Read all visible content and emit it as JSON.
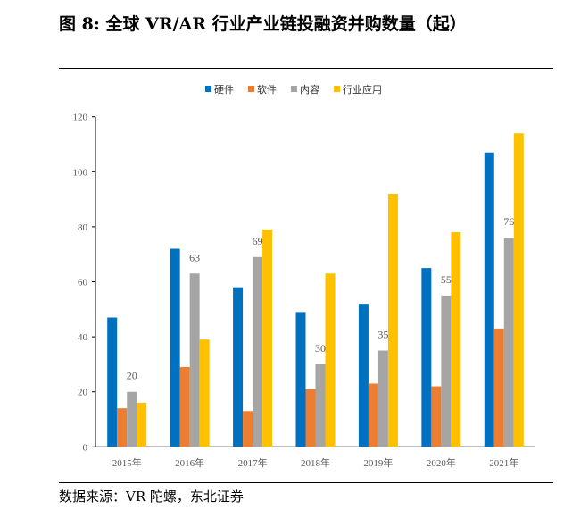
{
  "title": "图  8: 全球 VR/AR 行业产业链投融资并购数量（起）",
  "source": "数据来源：VR 陀螺，东北证券",
  "chart_data": {
    "type": "bar",
    "title": "图  8: 全球 VR/AR 行业产业链投融资并购数量（起）",
    "categories": [
      "2015年",
      "2016年",
      "2017年",
      "2018年",
      "2019年",
      "2020年",
      "2021年"
    ],
    "series": [
      {
        "name": "硬件",
        "color": "#0070C0",
        "values": [
          47,
          72,
          58,
          49,
          52,
          65,
          107
        ]
      },
      {
        "name": "软件",
        "color": "#ED7D31",
        "values": [
          14,
          29,
          13,
          21,
          23,
          22,
          43
        ]
      },
      {
        "name": "内容",
        "color": "#A5A5A5",
        "values": [
          20,
          63,
          69,
          30,
          35,
          55,
          76
        ],
        "data_labels": true
      },
      {
        "name": "行业应用",
        "color": "#FFC000",
        "values": [
          16,
          39,
          79,
          63,
          92,
          78,
          114
        ]
      }
    ],
    "ylim": [
      0,
      120
    ],
    "yticks": [
      0,
      20,
      40,
      60,
      80,
      100,
      120
    ],
    "grid": false,
    "legend": "top"
  }
}
